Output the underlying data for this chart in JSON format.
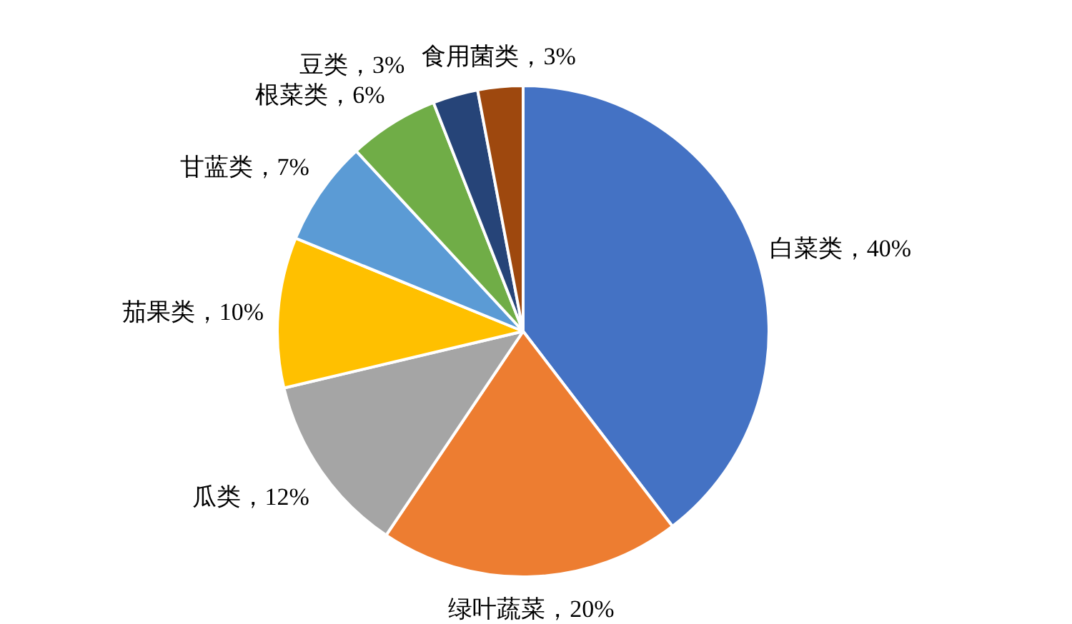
{
  "chart_data": {
    "type": "pie",
    "categories": [
      "白菜类",
      "绿叶蔬菜",
      "瓜类",
      "茄果类",
      "甘蓝类",
      "根菜类",
      "豆类",
      "食用菌类"
    ],
    "values": [
      40,
      20,
      12,
      10,
      7,
      6,
      3,
      3
    ],
    "value_labels": [
      "40%",
      "20%",
      "12%",
      "10%",
      "7%",
      "6%",
      "3%",
      "3%"
    ],
    "colors": [
      "#4472c4",
      "#ed7d31",
      "#a5a5a5",
      "#ffc000",
      "#5b9bd5",
      "#70ad47",
      "#264478",
      "#9e480e"
    ],
    "legend": false
  }
}
